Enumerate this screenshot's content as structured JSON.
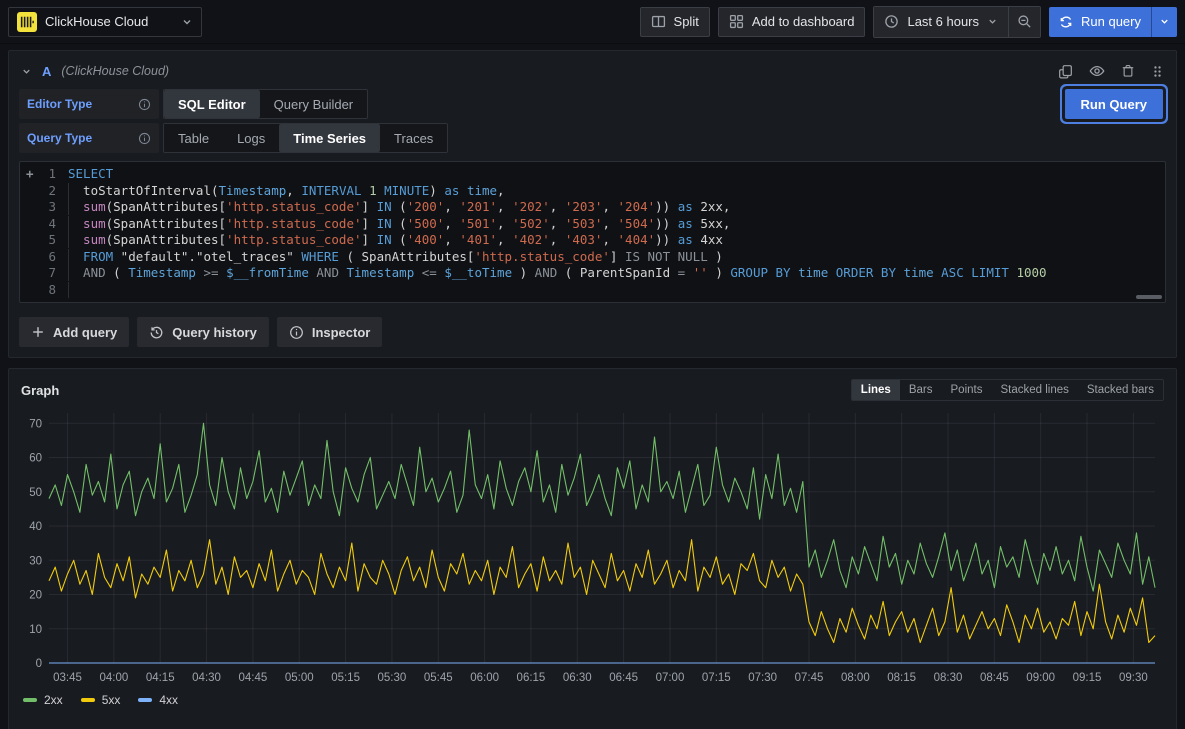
{
  "icons": [
    "clickhouse-logo",
    "chevron-down-icon",
    "split-icon",
    "apps-icon",
    "clock-icon",
    "search-minus-icon",
    "sync-icon",
    "caret-down-icon",
    "copy-icon",
    "eye-icon",
    "trash-icon",
    "grip-icon",
    "info-circle-icon",
    "plus-icon",
    "history-icon"
  ],
  "topbar": {
    "datasource_name": "ClickHouse Cloud",
    "split_label": "Split",
    "add_to_dashboard_label": "Add to dashboard",
    "time_range_label": "Last 6 hours",
    "run_query_label": "Run query"
  },
  "query_editor": {
    "ref_id": "A",
    "datasource_hint": "(ClickHouse Cloud)",
    "editor_type": {
      "label": "Editor Type",
      "options": [
        "SQL Editor",
        "Query Builder"
      ],
      "selected": "SQL Editor"
    },
    "query_type": {
      "label": "Query Type",
      "options": [
        "Table",
        "Logs",
        "Time Series",
        "Traces"
      ],
      "selected": "Time Series"
    },
    "run_query_label": "Run Query",
    "line_numbers": [
      "1",
      "2",
      "3",
      "4",
      "5",
      "6",
      "7",
      "8"
    ],
    "sql_lines": [
      [
        [
          "kw",
          "SELECT"
        ]
      ],
      [
        [
          "plain",
          "toStartOfInterval("
        ],
        [
          "var",
          "Timestamp"
        ],
        [
          "plain",
          ", "
        ],
        [
          "kw",
          "INTERVAL"
        ],
        [
          "plain",
          " "
        ],
        [
          "num",
          "1"
        ],
        [
          "plain",
          " "
        ],
        [
          "kw",
          "MINUTE"
        ],
        [
          "plain",
          ") "
        ],
        [
          "kw",
          "as"
        ],
        [
          "plain",
          " "
        ],
        [
          "var",
          "time"
        ],
        [
          "plain",
          ","
        ]
      ],
      [
        [
          "mag",
          "sum"
        ],
        [
          "plain",
          "(SpanAttributes["
        ],
        [
          "str",
          "'http.status_code'"
        ],
        [
          "plain",
          "] "
        ],
        [
          "kw",
          "IN"
        ],
        [
          "plain",
          " ("
        ],
        [
          "str",
          "'200'"
        ],
        [
          "plain",
          ", "
        ],
        [
          "str",
          "'201'"
        ],
        [
          "plain",
          ", "
        ],
        [
          "str",
          "'202'"
        ],
        [
          "plain",
          ", "
        ],
        [
          "str",
          "'203'"
        ],
        [
          "plain",
          ", "
        ],
        [
          "str",
          "'204'"
        ],
        [
          "plain",
          ")) "
        ],
        [
          "kw",
          "as"
        ],
        [
          "plain",
          " 2xx,"
        ]
      ],
      [
        [
          "mag",
          "sum"
        ],
        [
          "plain",
          "(SpanAttributes["
        ],
        [
          "str",
          "'http.status_code'"
        ],
        [
          "plain",
          "] "
        ],
        [
          "kw",
          "IN"
        ],
        [
          "plain",
          " ("
        ],
        [
          "str",
          "'500'"
        ],
        [
          "plain",
          ", "
        ],
        [
          "str",
          "'501'"
        ],
        [
          "plain",
          ", "
        ],
        [
          "str",
          "'502'"
        ],
        [
          "plain",
          ", "
        ],
        [
          "str",
          "'503'"
        ],
        [
          "plain",
          ", "
        ],
        [
          "str",
          "'504'"
        ],
        [
          "plain",
          ")) "
        ],
        [
          "kw",
          "as"
        ],
        [
          "plain",
          " 5xx,"
        ]
      ],
      [
        [
          "mag",
          "sum"
        ],
        [
          "plain",
          "(SpanAttributes["
        ],
        [
          "str",
          "'http.status_code'"
        ],
        [
          "plain",
          "] "
        ],
        [
          "kw",
          "IN"
        ],
        [
          "plain",
          " ("
        ],
        [
          "str",
          "'400'"
        ],
        [
          "plain",
          ", "
        ],
        [
          "str",
          "'401'"
        ],
        [
          "plain",
          ", "
        ],
        [
          "str",
          "'402'"
        ],
        [
          "plain",
          ", "
        ],
        [
          "str",
          "'403'"
        ],
        [
          "plain",
          ", "
        ],
        [
          "str",
          "'404'"
        ],
        [
          "plain",
          ")) "
        ],
        [
          "kw",
          "as"
        ],
        [
          "plain",
          " 4xx"
        ]
      ],
      [
        [
          "kw",
          "FROM"
        ],
        [
          "plain",
          " \"default\".\"otel_traces\" "
        ],
        [
          "kw",
          "WHERE"
        ],
        [
          "plain",
          " ( SpanAttributes["
        ],
        [
          "str",
          "'http.status_code'"
        ],
        [
          "plain",
          "] "
        ],
        [
          "gray",
          "IS NOT NULL"
        ],
        [
          "plain",
          " )"
        ]
      ],
      [
        [
          "gray",
          "AND"
        ],
        [
          "plain",
          " ( "
        ],
        [
          "var",
          "Timestamp"
        ],
        [
          "plain",
          " "
        ],
        [
          "gray",
          ">="
        ],
        [
          "plain",
          " "
        ],
        [
          "var",
          "$__fromTime"
        ],
        [
          "plain",
          " "
        ],
        [
          "gray",
          "AND"
        ],
        [
          "plain",
          " "
        ],
        [
          "var",
          "Timestamp"
        ],
        [
          "plain",
          " "
        ],
        [
          "gray",
          "<="
        ],
        [
          "plain",
          " "
        ],
        [
          "var",
          "$__toTime"
        ],
        [
          "plain",
          " ) "
        ],
        [
          "gray",
          "AND"
        ],
        [
          "plain",
          " ( ParentSpanId "
        ],
        [
          "gray",
          "="
        ],
        [
          "plain",
          " "
        ],
        [
          "str",
          "''"
        ],
        [
          "plain",
          " ) "
        ],
        [
          "kw",
          "GROUP BY"
        ],
        [
          "plain",
          " "
        ],
        [
          "var",
          "time"
        ],
        [
          "plain",
          " "
        ],
        [
          "kw",
          "ORDER BY"
        ],
        [
          "plain",
          " "
        ],
        [
          "var",
          "time"
        ],
        [
          "plain",
          " "
        ],
        [
          "kw",
          "ASC"
        ],
        [
          "plain",
          " "
        ],
        [
          "kw",
          "LIMIT"
        ],
        [
          "plain",
          " "
        ],
        [
          "num",
          "1000"
        ]
      ],
      []
    ]
  },
  "actions": {
    "add_query_label": "Add query",
    "query_history_label": "Query history",
    "inspector_label": "Inspector"
  },
  "graph_panel": {
    "title": "Graph",
    "modes": [
      "Lines",
      "Bars",
      "Points",
      "Stacked lines",
      "Stacked bars"
    ],
    "selected_mode": "Lines"
  },
  "chart_data": {
    "type": "line",
    "title": "Graph",
    "xlabel": "",
    "ylabel": "",
    "grid": true,
    "legend_position": "bottom-left",
    "ylim": [
      0,
      73
    ],
    "y_ticks": [
      0,
      10,
      20,
      30,
      40,
      50,
      60,
      70
    ],
    "x_start_minutes": 219,
    "x_step_minutes": 2,
    "x_tick_labels": [
      "03:45",
      "04:00",
      "04:15",
      "04:30",
      "04:45",
      "05:00",
      "05:15",
      "05:30",
      "05:45",
      "06:00",
      "06:15",
      "06:30",
      "06:45",
      "07:00",
      "07:15",
      "07:30",
      "07:45",
      "08:00",
      "08:15",
      "08:30",
      "08:45",
      "09:00",
      "09:15",
      "09:30"
    ],
    "series": [
      {
        "name": "2xx",
        "color": "#73BF69",
        "values": [
          48,
          52,
          46,
          55,
          50,
          44,
          58,
          49,
          53,
          47,
          61,
          45,
          52,
          56,
          43,
          50,
          54,
          48,
          64,
          47,
          51,
          58,
          44,
          49,
          55,
          70,
          52,
          46,
          60,
          50,
          45,
          57,
          48,
          53,
          62,
          47,
          51,
          44,
          56,
          49,
          54,
          59,
          46,
          52,
          48,
          65,
          50,
          43,
          57,
          51,
          47,
          55,
          60,
          45,
          49,
          53,
          48,
          58,
          52,
          46,
          63,
          50,
          54,
          47,
          51,
          56,
          44,
          49,
          68,
          52,
          48,
          55,
          45,
          59,
          51,
          46,
          53,
          57,
          50,
          62,
          47,
          52,
          44,
          58,
          49,
          54,
          61,
          46,
          50,
          55,
          48,
          43,
          57,
          51,
          59,
          45,
          52,
          47,
          66,
          50,
          53,
          48,
          56,
          44,
          51,
          58,
          46,
          49,
          63,
          52,
          47,
          54,
          50,
          45,
          57,
          42,
          55,
          48,
          61,
          46,
          51,
          44,
          53,
          28,
          33,
          25,
          30,
          36,
          27,
          22,
          31,
          26,
          34,
          29,
          24,
          37,
          28,
          32,
          23,
          30,
          26,
          35,
          29,
          25,
          31,
          38,
          27,
          33,
          24,
          29,
          35,
          26,
          30,
          22,
          34,
          28,
          31,
          25,
          36,
          29,
          23,
          32,
          27,
          34,
          26,
          30,
          24,
          37,
          28,
          21,
          33,
          29,
          25,
          35,
          30,
          26,
          38,
          23,
          31,
          22
        ]
      },
      {
        "name": "5xx",
        "color": "#F2CC0C",
        "values": [
          24,
          28,
          21,
          26,
          30,
          23,
          27,
          20,
          32,
          25,
          22,
          29,
          24,
          31,
          19,
          26,
          23,
          28,
          25,
          33,
          21,
          27,
          24,
          30,
          22,
          26,
          36,
          23,
          28,
          20,
          31,
          25,
          27,
          22,
          29,
          24,
          33,
          21,
          26,
          30,
          23,
          27,
          25,
          20,
          32,
          26,
          22,
          28,
          24,
          35,
          21,
          29,
          25,
          23,
          30,
          26,
          20,
          27,
          31,
          24,
          28,
          22,
          33,
          25,
          21,
          29,
          26,
          32,
          23,
          27,
          24,
          30,
          20,
          28,
          25,
          34,
          22,
          26,
          29,
          21,
          31,
          24,
          27,
          23,
          35,
          25,
          28,
          20,
          30,
          26,
          22,
          32,
          24,
          27,
          21,
          29,
          25,
          33,
          23,
          26,
          30,
          22,
          27,
          24,
          36,
          21,
          28,
          25,
          31,
          23,
          26,
          20,
          29,
          27,
          32,
          24,
          22,
          30,
          25,
          28,
          21,
          26,
          23,
          12,
          8,
          15,
          10,
          6,
          13,
          9,
          16,
          11,
          7,
          14,
          10,
          18,
          8,
          12,
          15,
          9,
          13,
          6,
          11,
          16,
          8,
          12,
          22,
          9,
          14,
          7,
          11,
          15,
          10,
          13,
          8,
          17,
          12,
          6,
          14,
          10,
          16,
          9,
          12,
          7,
          13,
          11,
          18,
          8,
          15,
          10,
          23,
          12,
          7,
          14,
          9,
          16,
          11,
          19,
          6,
          8
        ]
      },
      {
        "name": "4xx",
        "color": "#7EB2F8",
        "constant": 0
      }
    ]
  }
}
